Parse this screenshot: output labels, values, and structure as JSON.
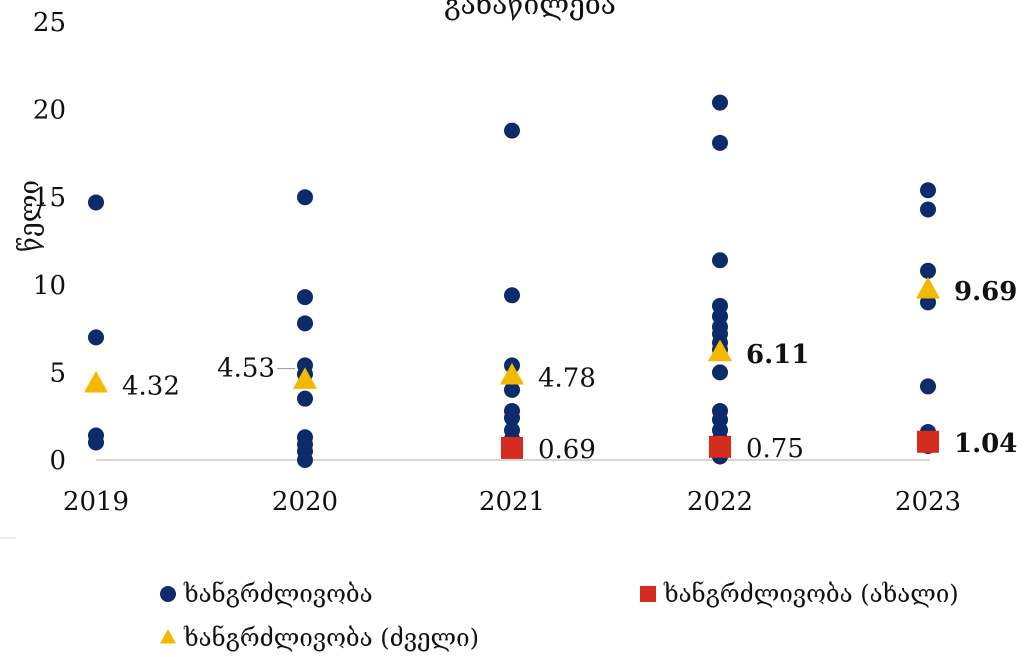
{
  "chart_data": {
    "type": "scatter",
    "title": "განაწილება",
    "xlabel": "",
    "ylabel": "წელი",
    "x_categories": [
      "2019",
      "2020",
      "2021",
      "2022",
      "2023"
    ],
    "ylim": [
      0,
      25
    ],
    "yticks": [
      0,
      5,
      10,
      15,
      20,
      25
    ],
    "grid": false,
    "legend_position": "bottom",
    "series": [
      {
        "name": "ხანგრძლივობა",
        "marker": "circle",
        "color": "#0d2a6b",
        "points": [
          {
            "x": "2019",
            "y": 14.7
          },
          {
            "x": "2019",
            "y": 7.0
          },
          {
            "x": "2019",
            "y": 1.4
          },
          {
            "x": "2019",
            "y": 1.0
          },
          {
            "x": "2020",
            "y": 15.0
          },
          {
            "x": "2020",
            "y": 9.3
          },
          {
            "x": "2020",
            "y": 7.8
          },
          {
            "x": "2020",
            "y": 5.4
          },
          {
            "x": "2020",
            "y": 4.9
          },
          {
            "x": "2020",
            "y": 3.5
          },
          {
            "x": "2020",
            "y": 1.3
          },
          {
            "x": "2020",
            "y": 0.9
          },
          {
            "x": "2020",
            "y": 0.5
          },
          {
            "x": "2020",
            "y": 0.0
          },
          {
            "x": "2021",
            "y": 18.8
          },
          {
            "x": "2021",
            "y": 9.4
          },
          {
            "x": "2021",
            "y": 5.4
          },
          {
            "x": "2021",
            "y": 4.0
          },
          {
            "x": "2021",
            "y": 2.8
          },
          {
            "x": "2021",
            "y": 2.4
          },
          {
            "x": "2021",
            "y": 1.7
          },
          {
            "x": "2021",
            "y": 1.2
          },
          {
            "x": "2022",
            "y": 20.4
          },
          {
            "x": "2022",
            "y": 18.1
          },
          {
            "x": "2022",
            "y": 11.4
          },
          {
            "x": "2022",
            "y": 8.8
          },
          {
            "x": "2022",
            "y": 8.2
          },
          {
            "x": "2022",
            "y": 7.6
          },
          {
            "x": "2022",
            "y": 7.2
          },
          {
            "x": "2022",
            "y": 6.7
          },
          {
            "x": "2022",
            "y": 6.3
          },
          {
            "x": "2022",
            "y": 5.0
          },
          {
            "x": "2022",
            "y": 2.8
          },
          {
            "x": "2022",
            "y": 2.3
          },
          {
            "x": "2022",
            "y": 1.7
          },
          {
            "x": "2022",
            "y": 1.2
          },
          {
            "x": "2022",
            "y": 0.2
          },
          {
            "x": "2023",
            "y": 15.4
          },
          {
            "x": "2023",
            "y": 14.3
          },
          {
            "x": "2023",
            "y": 10.8
          },
          {
            "x": "2023",
            "y": 9.0
          },
          {
            "x": "2023",
            "y": 4.2
          },
          {
            "x": "2023",
            "y": 1.6
          },
          {
            "x": "2023",
            "y": 0.8
          }
        ]
      },
      {
        "name": "ხანგრძლივობა (ახალი)",
        "marker": "square",
        "color": "#d42b1e",
        "points": [
          {
            "x": "2021",
            "y": 0.69,
            "label": "0.69"
          },
          {
            "x": "2022",
            "y": 0.75,
            "label": "0.75"
          },
          {
            "x": "2023",
            "y": 1.04,
            "label": "1.04"
          }
        ]
      },
      {
        "name": "ხანგრძლივობა (ძველი)",
        "marker": "triangle",
        "color": "#f5b800",
        "points": [
          {
            "x": "2019",
            "y": 4.32,
            "label": "4.32"
          },
          {
            "x": "2020",
            "y": 4.53,
            "label": "4.53"
          },
          {
            "x": "2021",
            "y": 4.78,
            "label": "4.78"
          },
          {
            "x": "2022",
            "y": 6.11,
            "label": "6.11"
          },
          {
            "x": "2023",
            "y": 9.69,
            "label": "9.69"
          }
        ]
      }
    ]
  }
}
